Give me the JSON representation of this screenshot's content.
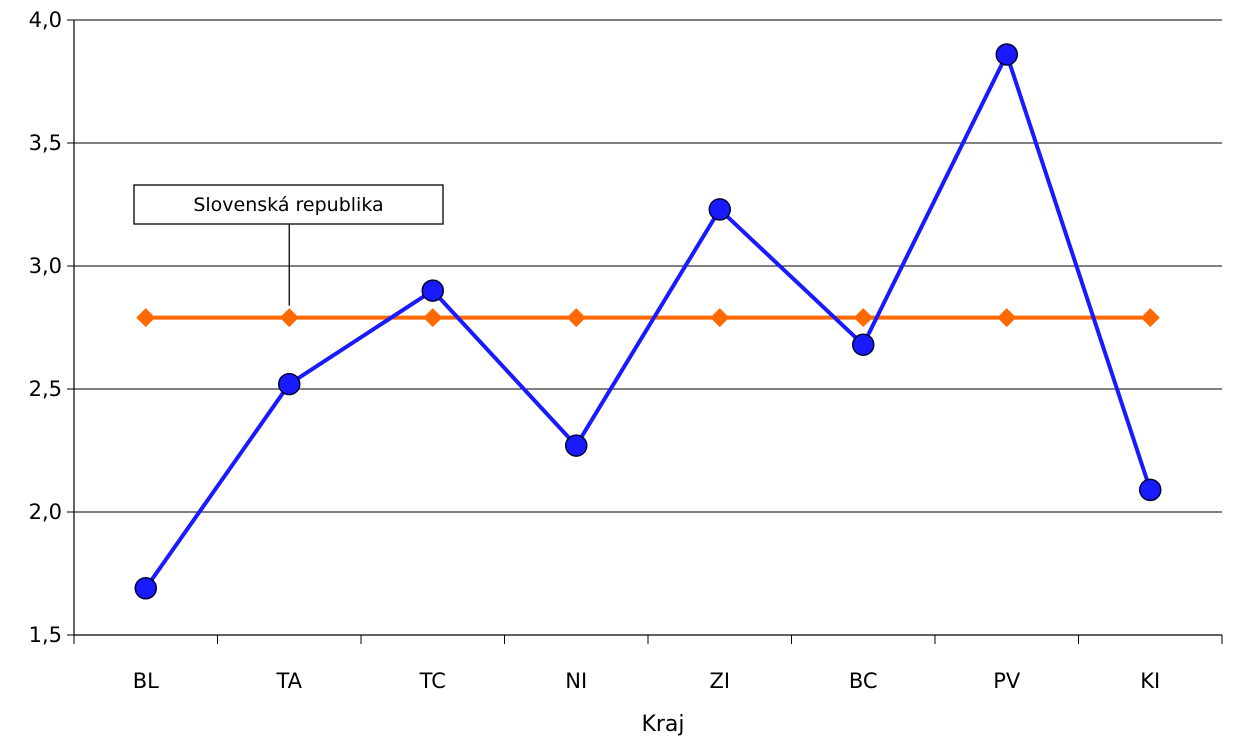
{
  "chart_data": {
    "type": "line",
    "xlabel": "Kraj",
    "ylabel": "",
    "categories": [
      "BL",
      "TA",
      "TC",
      "NI",
      "ZI",
      "BC",
      "PV",
      "KI"
    ],
    "ylim": [
      1.5,
      4.0
    ],
    "yticks": [
      "1,5",
      "2,0",
      "2,5",
      "3,0",
      "3,5",
      "4,0"
    ],
    "grid": true,
    "series": [
      {
        "color": "#1a1aff",
        "marker": "circle",
        "values": [
          1.69,
          2.52,
          2.9,
          2.27,
          3.23,
          2.68,
          3.86,
          2.09
        ]
      },
      {
        "name": "Slovenská republika",
        "color": "#ff6a00",
        "marker": "diamond",
        "values": [
          2.79,
          2.79,
          2.79,
          2.79,
          2.79,
          2.79,
          2.79,
          2.79
        ]
      }
    ],
    "annotation": {
      "text": "Slovenská republika",
      "points_to_category": "TA"
    }
  }
}
